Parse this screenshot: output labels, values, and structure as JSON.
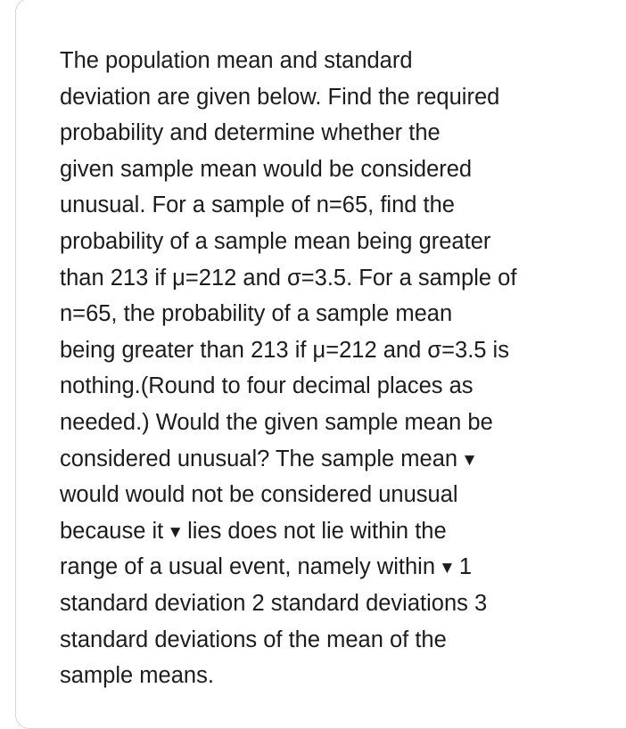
{
  "question": {
    "lines": [
      [
        {
          "t": "The population mean and standard"
        }
      ],
      [
        {
          "t": "deviation are given below. Find the required"
        }
      ],
      [
        {
          "t": "probability and determine whether the"
        }
      ],
      [
        {
          "t": "given sample mean would be considered"
        }
      ],
      [
        {
          "t": "unusual. For a sample of n=65, find the"
        }
      ],
      [
        {
          "t": "probability of a sample mean being greater"
        }
      ],
      [
        {
          "t": "than 213 if μ=212 and σ=3.5. For a sample of"
        }
      ],
      [
        {
          "t": "n=65, the probability of a sample mean"
        }
      ],
      [
        {
          "t": "being greater than 213 if μ=212 and σ=3.5 is"
        }
      ],
      [
        {
          "t": "nothing.(Round to four decimal places as"
        }
      ],
      [
        {
          "t": "needed.) Would the given sample mean be"
        }
      ],
      [
        {
          "t": "considered unusual? The sample mean"
        },
        {
          "dd": "▼"
        }
      ],
      [
        {
          "t": "would would not be considered unusual"
        }
      ],
      [
        {
          "t": "because it"
        },
        {
          "dd": "▼"
        },
        {
          "t": "lies does not lie within the"
        }
      ],
      [
        {
          "t": "range of a usual event, namely within"
        },
        {
          "dd": "▼"
        },
        {
          "t": "1"
        }
      ],
      [
        {
          "t": "standard deviation 2 standard deviations 3"
        }
      ],
      [
        {
          "t": "standard deviations of the mean of the"
        }
      ],
      [
        {
          "t": "sample means."
        }
      ]
    ]
  }
}
